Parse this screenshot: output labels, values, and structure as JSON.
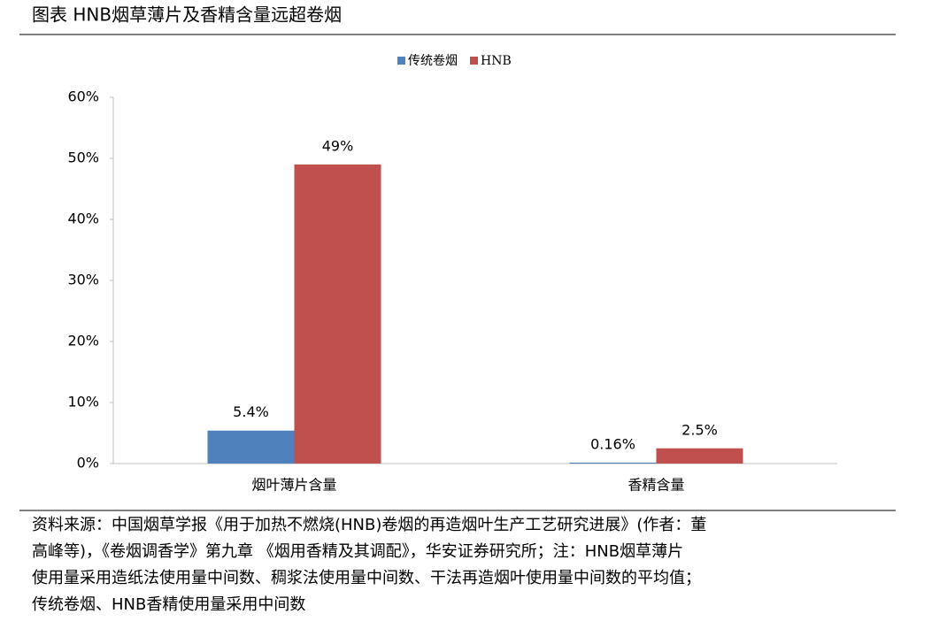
{
  "header": {
    "title": "图表 HNB烟草薄片及香精含量远超卷烟"
  },
  "chart_data": {
    "type": "bar",
    "categories": [
      "烟叶薄片含量",
      "香精含量"
    ],
    "series": [
      {
        "name": "传统卷烟",
        "color": "#4f81bd",
        "values": [
          5.4,
          0.16
        ],
        "value_labels": [
          "5.4%",
          "0.16%"
        ]
      },
      {
        "name": "HNB",
        "color": "#c0504d",
        "values": [
          49,
          2.5
        ],
        "value_labels": [
          "49%",
          "2.5%"
        ]
      }
    ],
    "ylim": [
      0,
      60
    ],
    "yticks": [
      {
        "value": 0,
        "label": "0%"
      },
      {
        "value": 10,
        "label": "10%"
      },
      {
        "value": 20,
        "label": "20%"
      },
      {
        "value": 30,
        "label": "30%"
      },
      {
        "value": 40,
        "label": "40%"
      },
      {
        "value": 50,
        "label": "50%"
      },
      {
        "value": 60,
        "label": "60%"
      }
    ],
    "legend": "top",
    "grid": false
  },
  "source": {
    "lines": [
      "资料来源：中国烟草学报《用于加热不燃烧(HNB)卷烟的再造烟叶生产工艺研究进展》(作者：董",
      "高峰等)，《卷烟调香学》第九章 《烟用香精及其调配》，华安证券研究所；注：HNB烟草薄片",
      "使用量采用造纸法使用量中间数、稠浆法使用量中间数、干法再造烟叶使用量中间数的平均值；",
      "传统卷烟、HNB香精使用量采用中间数"
    ]
  }
}
